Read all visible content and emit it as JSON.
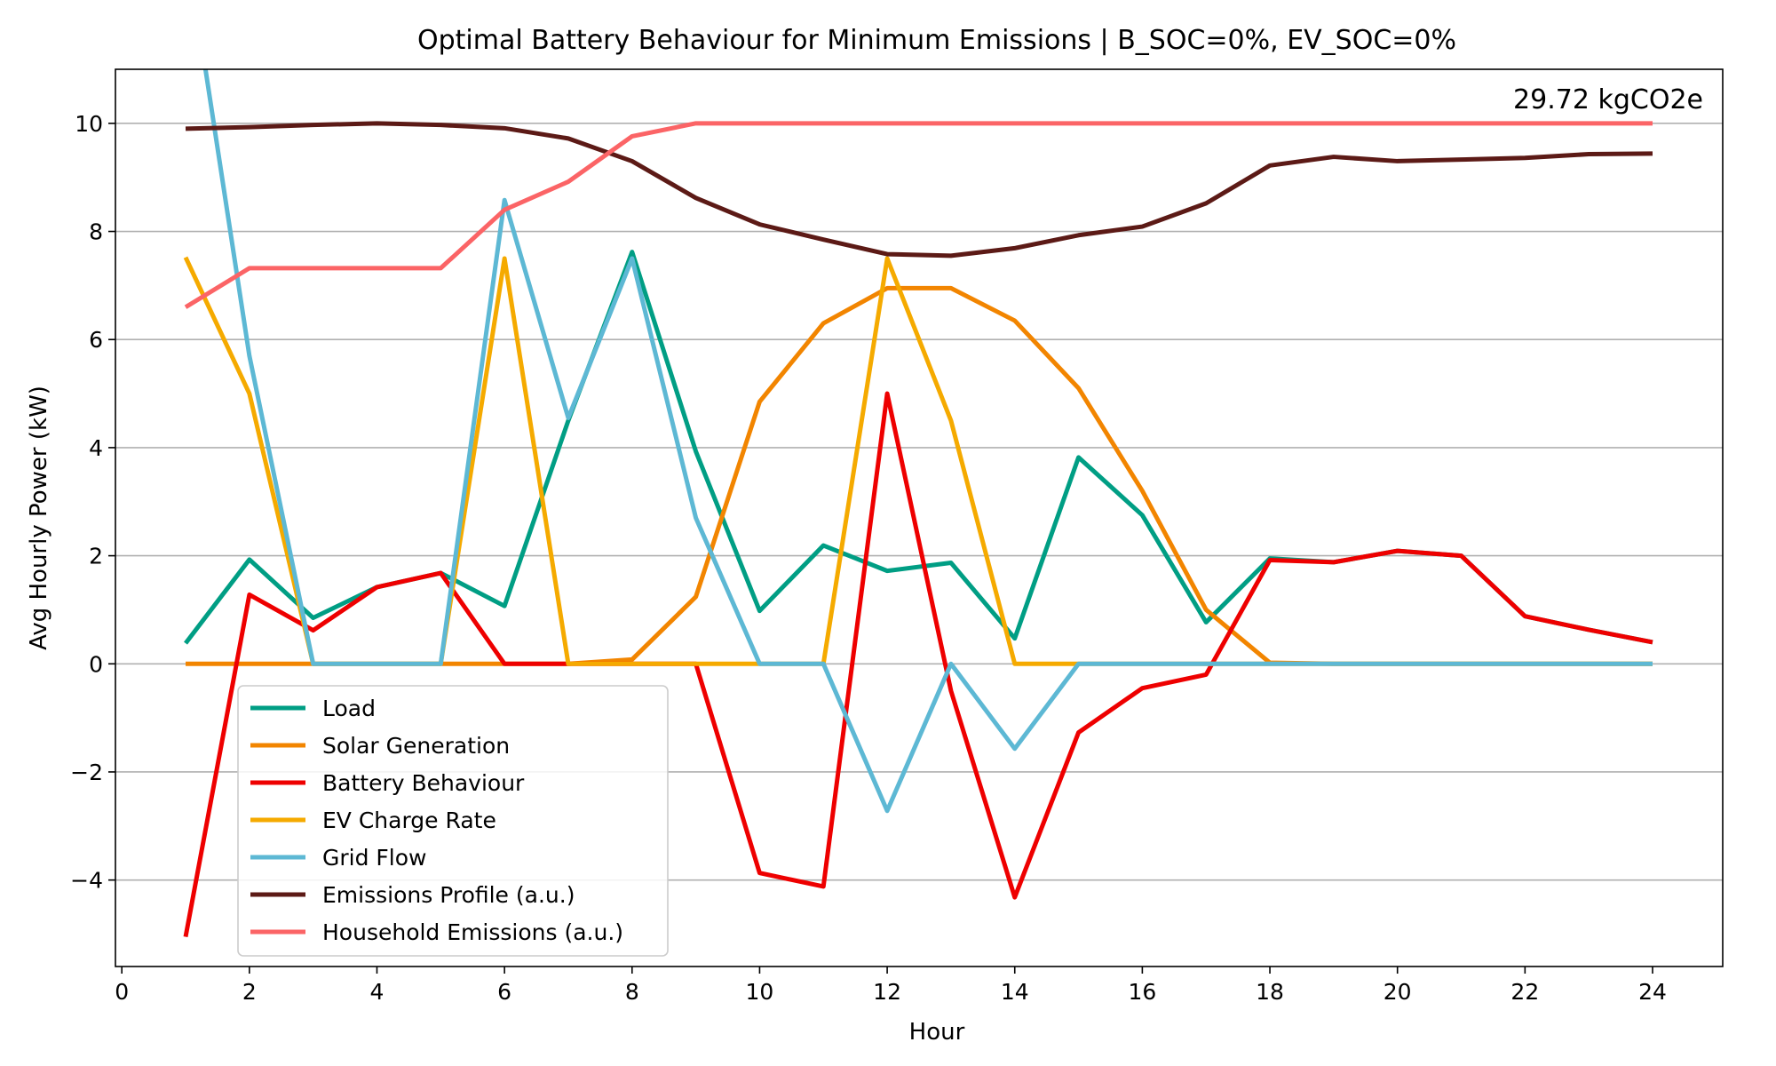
{
  "chart_data": {
    "type": "line",
    "title": "Optimal Battery Behaviour for Minimum Emissions | B_SOC=0%, EV_SOC=0%",
    "xlabel": "Hour",
    "ylabel": "Avg Hourly Power (kW)",
    "xlim": [
      -0.1,
      25.1
    ],
    "ylim": [
      -5.6,
      11.0
    ],
    "xticks": [
      0,
      2,
      4,
      6,
      8,
      10,
      12,
      14,
      16,
      18,
      20,
      22,
      24
    ],
    "yticks": [
      -4,
      -2,
      0,
      2,
      4,
      6,
      8,
      10
    ],
    "grid": "horizontal",
    "legend_position": "lower-left",
    "annotation": "29.72 kgCO2e",
    "x": [
      1,
      2,
      3,
      4,
      5,
      6,
      7,
      8,
      9,
      10,
      11,
      12,
      13,
      14,
      15,
      16,
      17,
      18,
      19,
      20,
      21,
      22,
      23,
      24
    ],
    "series": [
      {
        "name": "Load",
        "color": "#009e84",
        "values": [
          0.38,
          1.93,
          0.85,
          1.42,
          1.68,
          1.07,
          4.5,
          7.62,
          3.93,
          0.98,
          2.19,
          1.72,
          1.87,
          0.47,
          3.82,
          2.75,
          0.77,
          1.95,
          1.88,
          2.09,
          2.0,
          0.88,
          0.63,
          0.4
        ]
      },
      {
        "name": "Solar Generation",
        "color": "#f28500",
        "values": [
          0,
          0,
          0,
          0,
          0,
          0,
          0,
          0.08,
          1.24,
          4.85,
          6.3,
          6.95,
          6.95,
          6.35,
          5.1,
          3.2,
          1.0,
          0.02,
          0,
          0,
          0,
          0,
          0,
          0
        ]
      },
      {
        "name": "Battery Behaviour",
        "color": "#ee0000",
        "values": [
          -5.05,
          1.28,
          0.62,
          1.42,
          1.68,
          0,
          0,
          0,
          0,
          -3.87,
          -4.12,
          5.0,
          -0.5,
          -4.32,
          -1.27,
          -0.45,
          -0.2,
          1.92,
          1.88,
          2.09,
          2.0,
          0.88,
          0.63,
          0.4
        ]
      },
      {
        "name": "EV Charge Rate",
        "color": "#f5aa00",
        "values": [
          7.52,
          5.0,
          0,
          0,
          0,
          7.5,
          0,
          0,
          0,
          0,
          0,
          7.5,
          4.5,
          0,
          0,
          0,
          0,
          0,
          0,
          0,
          0,
          0,
          0,
          0
        ]
      },
      {
        "name": "Grid Flow",
        "color": "#5db8d4",
        "values": [
          13.4,
          5.7,
          0,
          0,
          0,
          8.58,
          4.55,
          7.5,
          2.7,
          0,
          0,
          -2.72,
          0,
          -1.57,
          0,
          0,
          0,
          0,
          0,
          0,
          0,
          0,
          0,
          0
        ]
      },
      {
        "name": "Emissions Profile (a.u.)",
        "color": "#5c1a16",
        "values": [
          9.9,
          9.93,
          9.97,
          10.0,
          9.97,
          9.91,
          9.72,
          9.3,
          8.62,
          8.13,
          7.85,
          7.58,
          7.55,
          7.69,
          7.93,
          8.09,
          8.52,
          9.22,
          9.38,
          9.3,
          9.33,
          9.36,
          9.43,
          9.44
        ]
      },
      {
        "name": "Household Emissions (a.u.)",
        "color": "#fb6466",
        "values": [
          6.6,
          7.32,
          7.32,
          7.32,
          7.32,
          8.4,
          8.92,
          9.76,
          10.0,
          10.0,
          10.0,
          10.0,
          10.0,
          10.0,
          10.0,
          10.0,
          10.0,
          10.0,
          10.0,
          10.0,
          10.0,
          10.0,
          10.0,
          10.0
        ]
      }
    ]
  }
}
